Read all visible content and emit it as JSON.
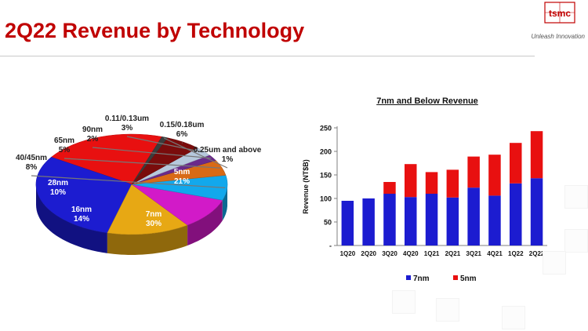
{
  "slide": {
    "title": "2Q22 Revenue by Technology",
    "logo_text": "tsmc",
    "tagline": "Unleash Innovation",
    "brand_color": "#c00000"
  },
  "chart_data": [
    {
      "type": "pie",
      "title": "",
      "slices": [
        {
          "label": "5nm",
          "value": 21,
          "pct_text": "21%",
          "color": "#e81010"
        },
        {
          "label": "7nm",
          "value": 30,
          "pct_text": "30%",
          "color": "#1c1cd0"
        },
        {
          "label": "16nm",
          "value": 14,
          "pct_text": "14%",
          "color": "#e7a814"
        },
        {
          "label": "28nm",
          "value": 10,
          "pct_text": "10%",
          "color": "#d21ac8"
        },
        {
          "label": "40/45nm",
          "value": 8,
          "pct_text": "8%",
          "color": "#12a8ec"
        },
        {
          "label": "65nm",
          "value": 5,
          "pct_text": "5%",
          "color": "#d86a16"
        },
        {
          "label": "90nm",
          "value": 2,
          "pct_text": "2%",
          "color": "#6a2a8a"
        },
        {
          "label": "0.11/0.13um",
          "value": 3,
          "pct_text": "3%",
          "color": "#b6c8dc"
        },
        {
          "label": "0.15/0.18um",
          "value": 6,
          "pct_text": "6%",
          "color": "#7a0c0c"
        },
        {
          "label": "0.25um and above",
          "value": 1,
          "pct_text": "1%",
          "color": "#3c3c3c"
        }
      ]
    },
    {
      "type": "bar",
      "stacked": true,
      "title": "7nm and Below Revenue",
      "xlabel": "",
      "ylabel": "Revenue (NT$B)",
      "ylim": [
        0,
        250
      ],
      "yticks": [
        0,
        50,
        100,
        150,
        200,
        250
      ],
      "ytick_labels": [
        "-",
        "50",
        "100",
        "150",
        "200",
        "250"
      ],
      "categories": [
        "1Q20",
        "2Q20",
        "3Q20",
        "4Q20",
        "1Q21",
        "2Q21",
        "3Q21",
        "4Q21",
        "1Q22",
        "2Q22"
      ],
      "series": [
        {
          "name": "7nm",
          "color": "#1c1cd0",
          "values": [
            95,
            100,
            110,
            103,
            110,
            102,
            123,
            106,
            132,
            143
          ]
        },
        {
          "name": "5nm",
          "color": "#e81010",
          "values": [
            0,
            0,
            25,
            70,
            46,
            59,
            66,
            87,
            86,
            100
          ]
        }
      ],
      "legend_position": "bottom",
      "grid": false
    }
  ]
}
